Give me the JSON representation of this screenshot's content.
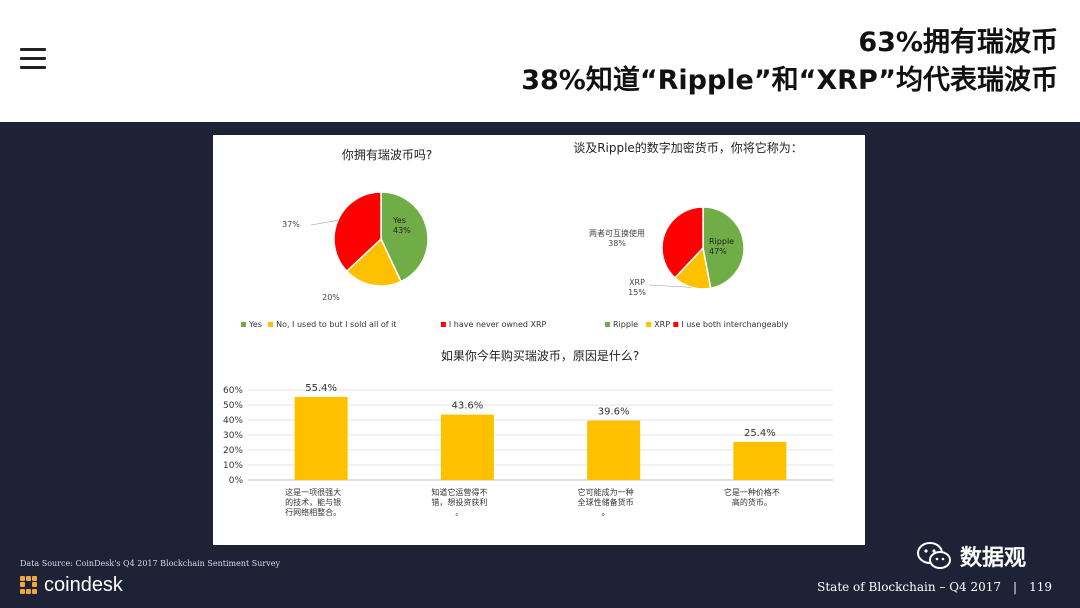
{
  "header": {
    "title_line1": "63%拥有瑞波币",
    "title_line2": "38%知道“Ripple”和“XRP”均代表瑞波币",
    "menu_icon": "hamburger-menu-icon"
  },
  "chart_data": [
    {
      "type": "pie",
      "title": "你拥有瑞波币吗?",
      "slices": [
        {
          "label": "Yes",
          "value": 43,
          "display": "Yes\n43%",
          "color": "#70ad47"
        },
        {
          "label": "No, I used to but I sold all of it",
          "value": 20,
          "display": "20%",
          "color": "#ffc000"
        },
        {
          "label": "I have never owned XRP",
          "value": 37,
          "display": "37%",
          "color": "#ff0000"
        }
      ],
      "legend": [
        "Yes",
        "No, I used to but I sold all of it",
        "I have never owned XRP"
      ],
      "legend_position": "bottom"
    },
    {
      "type": "pie",
      "title": "谈及Ripple的数字加密货币，你将它称为：",
      "slices": [
        {
          "label": "Ripple",
          "value": 47,
          "display": "Ripple\n47%",
          "color": "#70ad47"
        },
        {
          "label": "XRP",
          "value": 15,
          "display": "XRP\n15%",
          "color": "#ffc000"
        },
        {
          "label": "I use both interchangeably",
          "value": 38,
          "display": "两者可互换使用\n38%",
          "color": "#ff0000"
        }
      ],
      "legend": [
        "Ripple",
        "XRP",
        "I use both interchangeably"
      ],
      "legend_position": "bottom"
    },
    {
      "type": "bar",
      "title": "如果你今年购买瑞波币，原因是什么?",
      "categories": [
        "这是一项很强大的技术，能与银行网络相整合。",
        "知道它运营得不错，想投资获利",
        "它可能成为一种全球性储备货币",
        "它是一种价格不高的货币。"
      ],
      "values": [
        55.4,
        43.6,
        39.6,
        25.4
      ],
      "value_labels": [
        "55.4%",
        "43.6%",
        "39.6%",
        "25.4%"
      ],
      "ylim": [
        0,
        60
      ],
      "yticks": [
        "0%",
        "10%",
        "20%",
        "30%",
        "40%",
        "50%",
        "60%"
      ],
      "grid": true,
      "bar_color": "#ffc000"
    }
  ],
  "footer": {
    "source": "Data Source: CoinDesk's Q4 2017 Blockchain Sentiment Survey",
    "logo_text": "coindesk",
    "report_title": "State of Blockchain – Q4 2017",
    "separator": "|",
    "page_number": "119",
    "wechat_account": "数据观",
    "wechat_icon": "wechat-icon"
  }
}
